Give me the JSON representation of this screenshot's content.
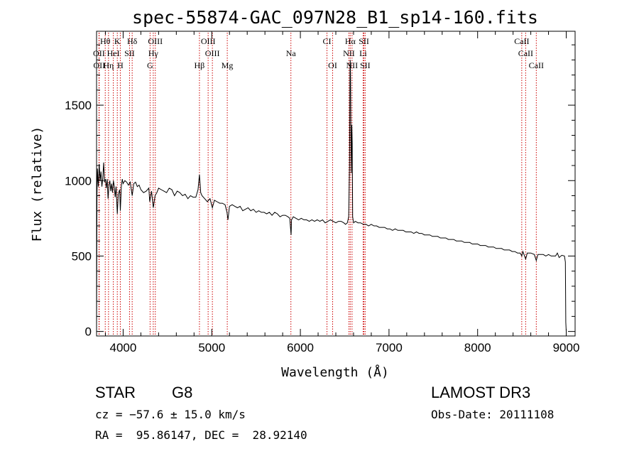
{
  "chart_data": {
    "type": "line",
    "title": "spec-55874-GAC_097N28_B1_sp14-160.fits",
    "xlabel": "Wavelength (Å)",
    "ylabel": "Flux (relative)",
    "xlim": [
      3700,
      9100
    ],
    "ylim": [
      -30,
      1990
    ],
    "x_ticks": [
      4000,
      5000,
      6000,
      7000,
      8000,
      9000
    ],
    "y_ticks": [
      0,
      500,
      1000,
      1500
    ],
    "grid": false,
    "series": [
      {
        "color": "#000000",
        "points": [
          [
            3700,
            0
          ],
          [
            3705,
            900
          ],
          [
            3710,
            1080
          ],
          [
            3720,
            960
          ],
          [
            3730,
            1110
          ],
          [
            3740,
            1000
          ],
          [
            3750,
            1060
          ],
          [
            3760,
            960
          ],
          [
            3770,
            1010
          ],
          [
            3780,
            1120
          ],
          [
            3790,
            990
          ],
          [
            3800,
            1010
          ],
          [
            3810,
            950
          ],
          [
            3820,
            1010
          ],
          [
            3830,
            880
          ],
          [
            3840,
            970
          ],
          [
            3850,
            1000
          ],
          [
            3860,
            930
          ],
          [
            3870,
            980
          ],
          [
            3880,
            920
          ],
          [
            3890,
            1000
          ],
          [
            3900,
            960
          ],
          [
            3910,
            890
          ],
          [
            3920,
            960
          ],
          [
            3934,
            780
          ],
          [
            3945,
            910
          ],
          [
            3960,
            940
          ],
          [
            3968,
            800
          ],
          [
            3980,
            960
          ],
          [
            3990,
            1010
          ],
          [
            4000,
            980
          ],
          [
            4020,
            1000
          ],
          [
            4040,
            990
          ],
          [
            4060,
            970
          ],
          [
            4080,
            990
          ],
          [
            4102,
            900
          ],
          [
            4120,
            980
          ],
          [
            4140,
            990
          ],
          [
            4160,
            960
          ],
          [
            4180,
            970
          ],
          [
            4200,
            940
          ],
          [
            4230,
            920
          ],
          [
            4260,
            930
          ],
          [
            4290,
            950
          ],
          [
            4300,
            860
          ],
          [
            4320,
            930
          ],
          [
            4340,
            820
          ],
          [
            4360,
            900
          ],
          [
            4380,
            920
          ],
          [
            4400,
            950
          ],
          [
            4430,
            940
          ],
          [
            4460,
            930
          ],
          [
            4490,
            920
          ],
          [
            4520,
            950
          ],
          [
            4550,
            940
          ],
          [
            4580,
            900
          ],
          [
            4610,
            930
          ],
          [
            4640,
            920
          ],
          [
            4670,
            900
          ],
          [
            4700,
            910
          ],
          [
            4730,
            880
          ],
          [
            4760,
            900
          ],
          [
            4790,
            890
          ],
          [
            4820,
            890
          ],
          [
            4845,
            940
          ],
          [
            4861,
            1040
          ],
          [
            4875,
            920
          ],
          [
            4890,
            900
          ],
          [
            4920,
            880
          ],
          [
            4950,
            860
          ],
          [
            4980,
            880
          ],
          [
            5007,
            820
          ],
          [
            5030,
            870
          ],
          [
            5060,
            860
          ],
          [
            5090,
            850
          ],
          [
            5120,
            850
          ],
          [
            5150,
            840
          ],
          [
            5172,
            790
          ],
          [
            5183,
            740
          ],
          [
            5200,
            830
          ],
          [
            5230,
            840
          ],
          [
            5260,
            830
          ],
          [
            5290,
            820
          ],
          [
            5320,
            830
          ],
          [
            5350,
            800
          ],
          [
            5380,
            810
          ],
          [
            5410,
            820
          ],
          [
            5440,
            800
          ],
          [
            5470,
            810
          ],
          [
            5500,
            790
          ],
          [
            5530,
            800
          ],
          [
            5560,
            790
          ],
          [
            5590,
            790
          ],
          [
            5620,
            780
          ],
          [
            5650,
            790
          ],
          [
            5680,
            770
          ],
          [
            5710,
            790
          ],
          [
            5740,
            780
          ],
          [
            5770,
            760
          ],
          [
            5800,
            770
          ],
          [
            5830,
            770
          ],
          [
            5860,
            760
          ],
          [
            5880,
            750
          ],
          [
            5890,
            680
          ],
          [
            5895,
            640
          ],
          [
            5900,
            740
          ],
          [
            5920,
            760
          ],
          [
            5950,
            750
          ],
          [
            5980,
            740
          ],
          [
            6010,
            750
          ],
          [
            6040,
            740
          ],
          [
            6070,
            740
          ],
          [
            6100,
            730
          ],
          [
            6130,
            740
          ],
          [
            6160,
            730
          ],
          [
            6190,
            740
          ],
          [
            6220,
            730
          ],
          [
            6250,
            740
          ],
          [
            6280,
            720
          ],
          [
            6310,
            730
          ],
          [
            6340,
            740
          ],
          [
            6370,
            730
          ],
          [
            6400,
            720
          ],
          [
            6430,
            730
          ],
          [
            6460,
            730
          ],
          [
            6490,
            720
          ],
          [
            6510,
            710
          ],
          [
            6530,
            720
          ],
          [
            6545,
            760
          ],
          [
            6555,
            1100
          ],
          [
            6560,
            1750
          ],
          [
            6563,
            1800
          ],
          [
            6566,
            1700
          ],
          [
            6570,
            1350
          ],
          [
            6575,
            1050
          ],
          [
            6580,
            1370
          ],
          [
            6585,
            1250
          ],
          [
            6590,
            760
          ],
          [
            6600,
            720
          ],
          [
            6620,
            730
          ],
          [
            6650,
            720
          ],
          [
            6680,
            720
          ],
          [
            6710,
            710
          ],
          [
            6740,
            710
          ],
          [
            6770,
            700
          ],
          [
            6800,
            710
          ],
          [
            6830,
            700
          ],
          [
            6860,
            700
          ],
          [
            6890,
            690
          ],
          [
            6920,
            690
          ],
          [
            6950,
            690
          ],
          [
            6980,
            680
          ],
          [
            7010,
            680
          ],
          [
            7040,
            670
          ],
          [
            7070,
            680
          ],
          [
            7100,
            670
          ],
          [
            7130,
            670
          ],
          [
            7160,
            670
          ],
          [
            7190,
            660
          ],
          [
            7220,
            660
          ],
          [
            7250,
            660
          ],
          [
            7280,
            650
          ],
          [
            7310,
            660
          ],
          [
            7340,
            650
          ],
          [
            7370,
            650
          ],
          [
            7400,
            640
          ],
          [
            7430,
            640
          ],
          [
            7460,
            640
          ],
          [
            7490,
            630
          ],
          [
            7520,
            630
          ],
          [
            7550,
            630
          ],
          [
            7580,
            620
          ],
          [
            7610,
            620
          ],
          [
            7640,
            620
          ],
          [
            7670,
            610
          ],
          [
            7700,
            610
          ],
          [
            7730,
            610
          ],
          [
            7760,
            600
          ],
          [
            7790,
            600
          ],
          [
            7820,
            600
          ],
          [
            7850,
            590
          ],
          [
            7880,
            590
          ],
          [
            7910,
            590
          ],
          [
            7940,
            580
          ],
          [
            7970,
            580
          ],
          [
            8000,
            580
          ],
          [
            8030,
            570
          ],
          [
            8060,
            570
          ],
          [
            8090,
            570
          ],
          [
            8120,
            560
          ],
          [
            8150,
            560
          ],
          [
            8180,
            560
          ],
          [
            8210,
            550
          ],
          [
            8240,
            550
          ],
          [
            8270,
            550
          ],
          [
            8300,
            540
          ],
          [
            8330,
            540
          ],
          [
            8360,
            540
          ],
          [
            8390,
            530
          ],
          [
            8420,
            530
          ],
          [
            8450,
            520
          ],
          [
            8480,
            520
          ],
          [
            8498,
            500
          ],
          [
            8510,
            530
          ],
          [
            8542,
            480
          ],
          [
            8560,
            520
          ],
          [
            8600,
            520
          ],
          [
            8640,
            510
          ],
          [
            8662,
            470
          ],
          [
            8680,
            510
          ],
          [
            8710,
            510
          ],
          [
            8740,
            510
          ],
          [
            8770,
            500
          ],
          [
            8800,
            510
          ],
          [
            8830,
            500
          ],
          [
            8860,
            500
          ],
          [
            8880,
            500
          ],
          [
            8900,
            520
          ],
          [
            8920,
            490
          ],
          [
            8950,
            505
          ],
          [
            8980,
            500
          ],
          [
            8990,
            460
          ],
          [
            8995,
            60
          ],
          [
            9000,
            0
          ]
        ]
      }
    ],
    "spectral_lines": [
      {
        "label": "Hθ",
        "x": 3798,
        "row": 0
      },
      {
        "label": "K",
        "x": 3934,
        "row": 0
      },
      {
        "label": "Hδ",
        "x": 4102,
        "row": 0
      },
      {
        "label": "OIII",
        "x": 4363,
        "row": 0
      },
      {
        "label": "OIII",
        "x": 4959,
        "row": 0
      },
      {
        "label": "CI",
        "x": 6300,
        "row": 0
      },
      {
        "label": "Hα",
        "x": 6563,
        "row": 0
      },
      {
        "label": "SII",
        "x": 6717,
        "row": 0
      },
      {
        "label": "CaII",
        "x": 8498,
        "row": 0
      },
      {
        "label": "OII",
        "x": 3727,
        "row": 1
      },
      {
        "label": "HeI",
        "x": 3889,
        "row": 1
      },
      {
        "label": "SII",
        "x": 4072,
        "row": 1
      },
      {
        "label": "Hγ",
        "x": 4340,
        "row": 1
      },
      {
        "label": "OIII",
        "x": 5007,
        "row": 1
      },
      {
        "label": "Na",
        "x": 5893,
        "row": 1
      },
      {
        "label": "NII",
        "x": 6548,
        "row": 1
      },
      {
        "label": "Li",
        "x": 6708,
        "row": 1
      },
      {
        "label": "CaII",
        "x": 8542,
        "row": 1
      },
      {
        "label": "OII",
        "x": 3730,
        "row": 2
      },
      {
        "label": "Hη",
        "x": 3835,
        "row": 2
      },
      {
        "label": "H",
        "x": 3968,
        "row": 2
      },
      {
        "label": "G",
        "x": 4304,
        "row": 2
      },
      {
        "label": "Hβ",
        "x": 4861,
        "row": 2
      },
      {
        "label": "Mg",
        "x": 5175,
        "row": 2
      },
      {
        "label": "OI",
        "x": 6364,
        "row": 2
      },
      {
        "label": "NII",
        "x": 6583,
        "row": 2
      },
      {
        "label": "SII",
        "x": 6731,
        "row": 2
      },
      {
        "label": "CaII",
        "x": 8662,
        "row": 2
      }
    ],
    "line_marker_color": "#cc0000"
  },
  "info": {
    "object_class": "STAR",
    "subclass": "G8",
    "survey": "LAMOST DR3",
    "redshift": "cz = −57.6 ± 15.0 km/s",
    "obs_date": "Obs-Date: 20111108",
    "coords": "RA =  95.86147, DEC =  28.92140"
  }
}
